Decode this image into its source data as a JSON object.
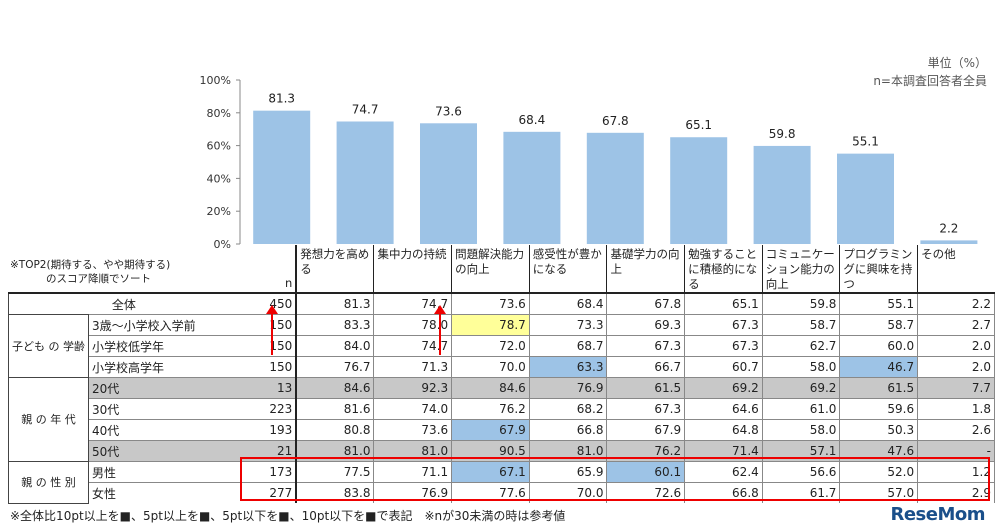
{
  "unit_line1": "単位（%）",
  "unit_line2": "n=本調査回答者全員",
  "sort_note_line1": "※TOP2(期待する、やや期待する)",
  "sort_note_line2": "のスコア降順でソート",
  "n_label": "n",
  "footnote": "※全体比10pt以上を■、5pt以上を■、5pt以下を■、10pt以下を■で表記　※nが30未満の時は参考値",
  "logo": "ReseMom",
  "colors": {
    "bar": "#9dc3e6",
    "highlight_blue": "#9dc3e6",
    "highlight_yellow": "#ffff99",
    "gray_row": "#c8c8c8",
    "red": "#e00000"
  },
  "chart_data": {
    "type": "bar",
    "categories": [
      "発想力を高める",
      "集中力の持続",
      "問題解決能力の向上",
      "感受性が豊かになる",
      "基礎学力の向上",
      "勉強することに積極的になる",
      "コミュニケーション能力の向上",
      "プログラミングに興味を持つ",
      "その他"
    ],
    "values": [
      81.3,
      74.7,
      73.6,
      68.4,
      67.8,
      65.1,
      59.8,
      55.1,
      2.2
    ],
    "ylim": [
      0,
      100
    ],
    "yticks": [
      "0%",
      "20%",
      "40%",
      "60%",
      "80%",
      "100%"
    ],
    "grid": false
  },
  "table": {
    "col_headers": [
      "発想力を高める",
      "集中力の持続",
      "問題解決能力の向上",
      "感受性が豊かになる",
      "基礎学力の向上",
      "勉強することに積極的になる",
      "コミュニケーション能力の向上",
      "プログラミングに興味を持つ",
      "その他"
    ],
    "total": {
      "label": "全体",
      "n": "450",
      "values": [
        "81.3",
        "74.7",
        "73.6",
        "68.4",
        "67.8",
        "65.1",
        "59.8",
        "55.1",
        "2.2"
      ]
    },
    "groups": [
      {
        "label": "子ども の 学齢",
        "rows": [
          {
            "label": "3歳～小学校入学前",
            "n": "150",
            "values": [
              "83.3",
              "78.0",
              "78.7",
              "73.3",
              "69.3",
              "67.3",
              "58.7",
              "58.7",
              "2.7"
            ],
            "hi": {
              "2": "yellow"
            }
          },
          {
            "label": "小学校低学年",
            "n": "150",
            "values": [
              "84.0",
              "74.7",
              "72.0",
              "68.7",
              "67.3",
              "67.3",
              "62.7",
              "60.0",
              "2.0"
            ],
            "hi": {}
          },
          {
            "label": "小学校高学年",
            "n": "150",
            "values": [
              "76.7",
              "71.3",
              "70.0",
              "63.3",
              "66.7",
              "60.7",
              "58.0",
              "46.7",
              "2.0"
            ],
            "hi": {
              "3": "blue",
              "7": "blue"
            }
          }
        ]
      },
      {
        "label": "親 の 年 代",
        "rows": [
          {
            "label": "20代",
            "n": "13",
            "values": [
              "84.6",
              "92.3",
              "84.6",
              "76.9",
              "61.5",
              "69.2",
              "69.2",
              "61.5",
              "7.7"
            ],
            "hi": {},
            "gray": true
          },
          {
            "label": "30代",
            "n": "223",
            "values": [
              "81.6",
              "74.0",
              "76.2",
              "68.2",
              "67.3",
              "64.6",
              "61.0",
              "59.6",
              "1.8"
            ],
            "hi": {}
          },
          {
            "label": "40代",
            "n": "193",
            "values": [
              "80.8",
              "73.6",
              "67.9",
              "66.8",
              "67.9",
              "64.8",
              "58.0",
              "50.3",
              "2.6"
            ],
            "hi": {
              "2": "blue"
            }
          },
          {
            "label": "50代",
            "n": "21",
            "values": [
              "81.0",
              "81.0",
              "90.5",
              "81.0",
              "76.2",
              "71.4",
              "57.1",
              "47.6",
              "-"
            ],
            "hi": {},
            "gray": true
          }
        ]
      },
      {
        "label": "親 の 性 別",
        "rows": [
          {
            "label": "男性",
            "n": "173",
            "values": [
              "77.5",
              "71.1",
              "67.1",
              "65.9",
              "60.1",
              "62.4",
              "56.6",
              "52.0",
              "1.2"
            ],
            "hi": {
              "2": "blue",
              "4": "blue"
            }
          },
          {
            "label": "女性",
            "n": "277",
            "values": [
              "83.8",
              "76.9",
              "77.6",
              "70.0",
              "72.6",
              "66.8",
              "61.7",
              "57.0",
              "2.9"
            ],
            "hi": {}
          }
        ]
      }
    ]
  }
}
